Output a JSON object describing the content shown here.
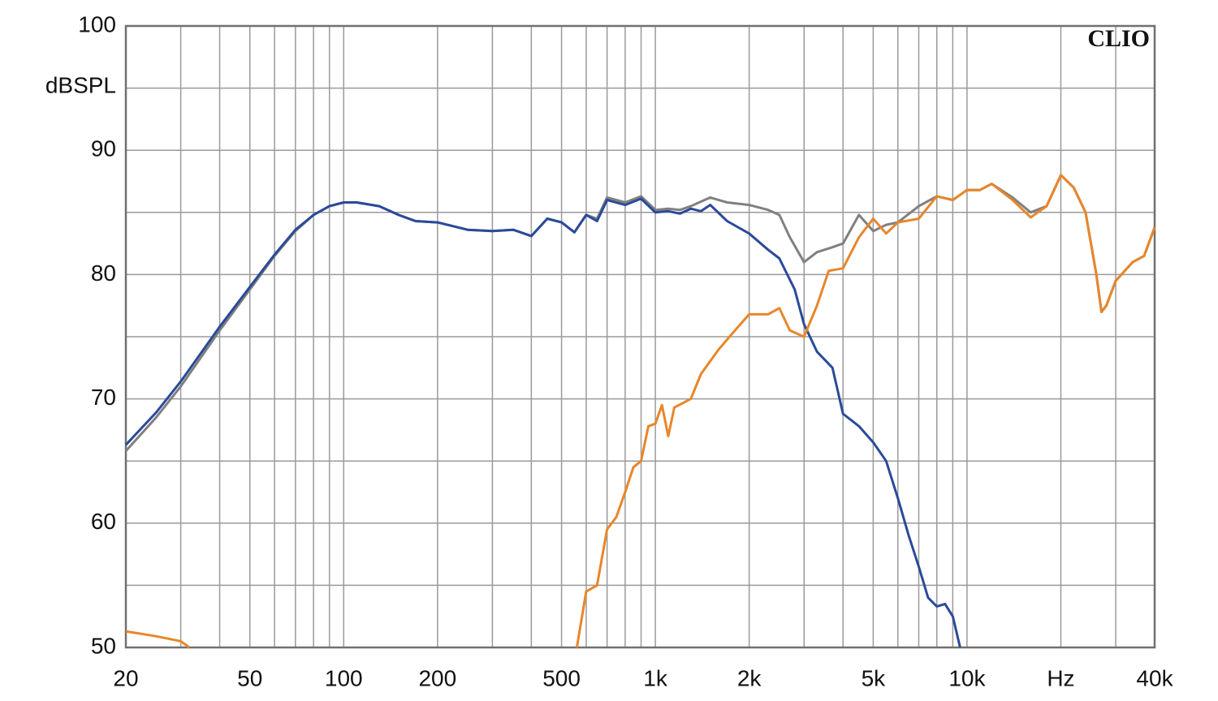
{
  "chart_data": {
    "type": "line",
    "y_label": "dBSPL",
    "annotation": "CLIO",
    "xscale": "log",
    "grid": true,
    "xlim": [
      20,
      40000
    ],
    "ylim": [
      50,
      100
    ],
    "xticks": [
      20,
      50,
      100,
      200,
      500,
      {
        "value": 1000,
        "label": "1k"
      },
      {
        "value": 2000,
        "label": "2k"
      },
      {
        "value": 5000,
        "label": "5k"
      },
      {
        "value": 10000,
        "label": "10k"
      },
      {
        "value": 20000,
        "label": "Hz"
      },
      {
        "value": 40000,
        "label": "40k"
      }
    ],
    "x_minor_ticks": [
      30,
      40,
      60,
      70,
      80,
      90,
      300,
      400,
      600,
      700,
      800,
      900,
      3000,
      4000,
      6000,
      7000,
      8000,
      9000,
      30000
    ],
    "yticks": [
      50,
      60,
      70,
      80,
      90,
      100
    ],
    "y_minor_ticks": [
      55,
      65,
      75,
      85,
      95
    ],
    "series": [
      {
        "color": "#808080",
        "x": [
          20,
          25,
          30,
          40,
          50,
          60,
          70,
          80,
          90,
          100,
          110,
          130,
          150,
          170,
          200,
          250,
          300,
          350,
          400,
          450,
          500,
          550,
          600,
          650,
          700,
          800,
          900,
          1000,
          1100,
          1200,
          1300,
          1500,
          1700,
          2000,
          2300,
          2500,
          2700,
          3000,
          3300,
          3700,
          4000,
          4500,
          5000,
          5500,
          6000,
          7000,
          8000,
          9000,
          10000,
          11000,
          12000,
          14000,
          16000,
          18000,
          20000,
          22000,
          24000,
          26000,
          27000,
          28000,
          30000,
          34000,
          37000,
          40000
        ],
        "values": [
          65.8,
          68.5,
          71,
          75.5,
          78.8,
          81.5,
          83.5,
          84.8,
          85.5,
          85.8,
          85.8,
          85.5,
          84.8,
          84.3,
          84.2,
          83.6,
          83.5,
          83.6,
          83.1,
          84.5,
          84.2,
          83.4,
          84.8,
          84.5,
          86.2,
          85.8,
          86.3,
          85.2,
          85.3,
          85.2,
          85.5,
          86.2,
          85.8,
          85.6,
          85.2,
          84.8,
          83,
          81,
          81.8,
          82.2,
          82.5,
          84.8,
          83.5,
          84,
          84.2,
          85.5,
          86.3,
          86,
          86.8,
          86.8,
          87.3,
          86.2,
          85,
          85.5,
          88,
          87,
          85,
          80,
          77,
          77.5,
          79.5,
          81,
          81.5,
          83.8
        ]
      },
      {
        "color": "#2a4a9a",
        "x": [
          20,
          25,
          30,
          40,
          50,
          60,
          70,
          80,
          90,
          100,
          110,
          130,
          150,
          170,
          200,
          250,
          300,
          350,
          400,
          450,
          500,
          550,
          600,
          650,
          700,
          800,
          900,
          1000,
          1100,
          1200,
          1300,
          1400,
          1500,
          1700,
          2000,
          2300,
          2500,
          2800,
          3000,
          3300,
          3700,
          4000,
          4500,
          5000,
          5500,
          6000,
          6500,
          7000,
          7500,
          8000,
          8500,
          9000,
          9500
        ],
        "values": [
          66.3,
          68.9,
          71.4,
          75.8,
          79,
          81.6,
          83.6,
          84.8,
          85.5,
          85.8,
          85.8,
          85.5,
          84.8,
          84.3,
          84.2,
          83.6,
          83.5,
          83.6,
          83.1,
          84.5,
          84.2,
          83.4,
          84.8,
          84.3,
          86,
          85.6,
          86.1,
          85,
          85.1,
          84.9,
          85.3,
          85.1,
          85.6,
          84.3,
          83.3,
          82,
          81.3,
          78.8,
          76,
          73.8,
          72.5,
          68.8,
          67.8,
          66.5,
          65,
          62,
          59,
          56.5,
          54,
          53.3,
          53.5,
          52.5,
          50
        ]
      },
      {
        "color": "#e8862a",
        "x": [
          20,
          25,
          30,
          32,
          100,
          560,
          600,
          650,
          700,
          750,
          800,
          850,
          900,
          950,
          1000,
          1050,
          1100,
          1150,
          1300,
          1400,
          1600,
          1800,
          2000,
          2300,
          2500,
          2700,
          3000,
          3300,
          3600,
          4000,
          4500,
          5000,
          5500,
          6000,
          7000,
          8000,
          9000,
          10000,
          11000,
          12000,
          14000,
          16000,
          18000,
          20000,
          22000,
          24000,
          26000,
          27000,
          28000,
          30000,
          34000,
          37000,
          40000
        ],
        "values": [
          51.3,
          50.9,
          50.5,
          50,
          null,
          50,
          54.5,
          55,
          59.5,
          60.5,
          62.5,
          64.5,
          65,
          67.8,
          68,
          69.5,
          67,
          69.3,
          70,
          72,
          74,
          75.5,
          76.8,
          76.8,
          77.3,
          75.5,
          75,
          77.5,
          80.3,
          80.5,
          83,
          84.5,
          83.3,
          84.2,
          84.5,
          86.3,
          86,
          86.8,
          86.8,
          87.3,
          86,
          84.6,
          85.5,
          88,
          87,
          85,
          80,
          77,
          77.5,
          79.5,
          81,
          81.5,
          83.8
        ]
      }
    ]
  }
}
